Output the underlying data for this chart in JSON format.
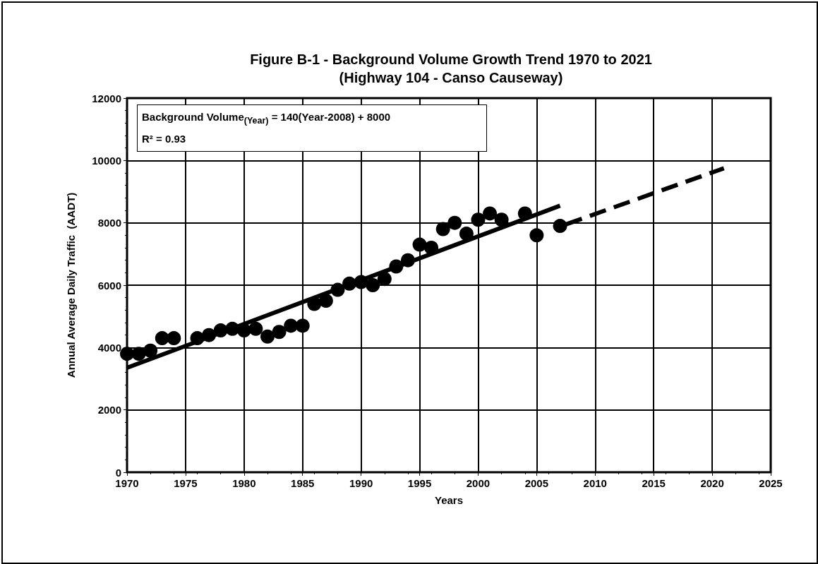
{
  "chart_data": {
    "type": "scatter",
    "title": "Figure B-1 - Background Volume Growth Trend 1970 to 2021\n(Highway 104 - Canso Causeway)",
    "xlabel": "Years",
    "ylabel": "Annual Average Daily Traffic  (AADT)",
    "annotations": [
      "Background Volume$_{(Year)}$ = 140(Year-2008) + 8000",
      "R² = 0.93"
    ],
    "xlim": [
      1970,
      2025
    ],
    "xticks": [
      1970,
      1975,
      1980,
      1985,
      1990,
      1995,
      2000,
      2005,
      2010,
      2015,
      2020,
      2025
    ],
    "ylim": [
      0,
      12000
    ],
    "yticks": [
      0,
      2000,
      4000,
      6000,
      8000,
      10000,
      12000
    ],
    "grid": true,
    "marker": "circle",
    "series": [
      {
        "color": "#000000",
        "x": [
          1970,
          1971,
          1972,
          1973,
          1974,
          1976,
          1977,
          1978,
          1979,
          1980,
          1981,
          1982,
          1983,
          1984,
          1985,
          1986,
          1987,
          1988,
          1989,
          1990,
          1991,
          1992,
          1993,
          1994,
          1995,
          1996,
          1997,
          1998,
          1999,
          2000,
          2001,
          2002,
          2004,
          2005,
          2007
        ],
        "values": [
          3800,
          3800,
          3900,
          4300,
          4300,
          4300,
          4400,
          4550,
          4600,
          4550,
          4600,
          4350,
          4500,
          4700,
          4700,
          5400,
          5500,
          5850,
          6050,
          6100,
          6000,
          6200,
          6600,
          6800,
          7300,
          7200,
          7800,
          8000,
          7650,
          8100,
          8300,
          8100,
          8300,
          7600,
          7900
        ]
      },
      {
        "type": "line",
        "color": "#000000",
        "line_style": "solid",
        "marker": "none",
        "x": [
          1970,
          2007
        ],
        "values": [
          3350,
          8550
        ]
      },
      {
        "type": "line",
        "color": "#000000",
        "line_style": "dashed",
        "marker": "none",
        "x": [
          2007.5,
          2021
        ],
        "values": [
          7950,
          9750
        ]
      }
    ]
  }
}
